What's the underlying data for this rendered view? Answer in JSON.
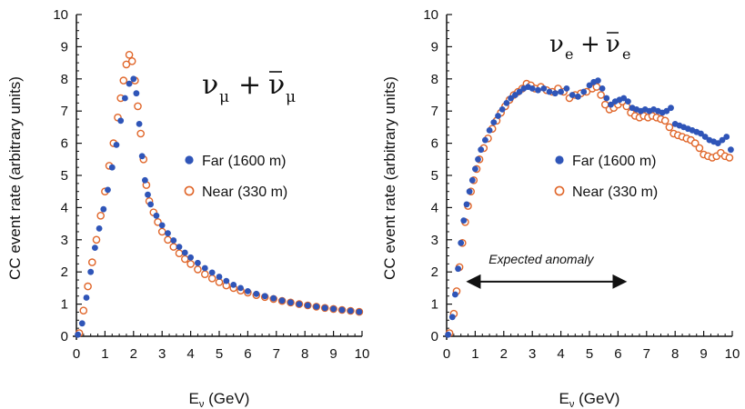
{
  "colors": {
    "far": "#2f55b8",
    "near": "#e0662a",
    "axis": "#111111"
  },
  "chart_data": [
    {
      "type": "scatter",
      "title": "",
      "formula": {
        "base": "ν",
        "sub": "μ",
        "plus": "+",
        "bar_base": "ν",
        "bar_sub": "μ"
      },
      "xlabel": {
        "base": "E",
        "sub": "ν",
        "unit": " (GeV)"
      },
      "ylabel": "CC event rate  (arbitrary units)",
      "xlim": [
        0,
        10
      ],
      "ylim": [
        0,
        10
      ],
      "xticks": [
        "0",
        "1",
        "2",
        "3",
        "4",
        "5",
        "6",
        "7",
        "8",
        "9",
        "10"
      ],
      "yticks": [
        "0",
        "1",
        "2",
        "3",
        "4",
        "5",
        "6",
        "7",
        "8",
        "9",
        "10"
      ],
      "grid": false,
      "legend_position": "right-middle",
      "series": [
        {
          "name": "Far (1600 m)",
          "marker": "filled-circle",
          "points": [
            [
              0.05,
              0.05
            ],
            [
              0.2,
              0.4
            ],
            [
              0.35,
              1.2
            ],
            [
              0.5,
              2.0
            ],
            [
              0.65,
              2.75
            ],
            [
              0.8,
              3.35
            ],
            [
              0.95,
              3.95
            ],
            [
              1.1,
              4.55
            ],
            [
              1.25,
              5.25
            ],
            [
              1.4,
              5.95
            ],
            [
              1.55,
              6.7
            ],
            [
              1.7,
              7.4
            ],
            [
              1.85,
              7.85
            ],
            [
              2.0,
              8.0
            ],
            [
              2.1,
              7.55
            ],
            [
              2.2,
              6.6
            ],
            [
              2.3,
              5.6
            ],
            [
              2.4,
              4.85
            ],
            [
              2.5,
              4.4
            ],
            [
              2.6,
              4.1
            ],
            [
              2.8,
              3.75
            ],
            [
              3.0,
              3.45
            ],
            [
              3.2,
              3.2
            ],
            [
              3.4,
              2.98
            ],
            [
              3.6,
              2.78
            ],
            [
              3.8,
              2.6
            ],
            [
              4.0,
              2.45
            ],
            [
              4.25,
              2.28
            ],
            [
              4.5,
              2.12
            ],
            [
              4.75,
              1.98
            ],
            [
              5.0,
              1.85
            ],
            [
              5.25,
              1.72
            ],
            [
              5.5,
              1.6
            ],
            [
              5.75,
              1.5
            ],
            [
              6.0,
              1.4
            ],
            [
              6.3,
              1.32
            ],
            [
              6.6,
              1.25
            ],
            [
              6.9,
              1.18
            ],
            [
              7.2,
              1.11
            ],
            [
              7.5,
              1.05
            ],
            [
              7.8,
              1.0
            ],
            [
              8.1,
              0.96
            ],
            [
              8.4,
              0.92
            ],
            [
              8.7,
              0.88
            ],
            [
              9.0,
              0.85
            ],
            [
              9.3,
              0.82
            ],
            [
              9.6,
              0.79
            ],
            [
              9.9,
              0.76
            ]
          ]
        },
        {
          "name": "Near (330 m)",
          "marker": "open-circle",
          "points": [
            [
              0.1,
              0.1
            ],
            [
              0.25,
              0.8
            ],
            [
              0.4,
              1.55
            ],
            [
              0.55,
              2.3
            ],
            [
              0.7,
              3.0
            ],
            [
              0.85,
              3.75
            ],
            [
              1.0,
              4.5
            ],
            [
              1.15,
              5.3
            ],
            [
              1.3,
              6.0
            ],
            [
              1.45,
              6.8
            ],
            [
              1.55,
              7.4
            ],
            [
              1.65,
              7.95
            ],
            [
              1.75,
              8.45
            ],
            [
              1.85,
              8.75
            ],
            [
              1.95,
              8.55
            ],
            [
              2.05,
              7.95
            ],
            [
              2.15,
              7.15
            ],
            [
              2.25,
              6.3
            ],
            [
              2.35,
              5.5
            ],
            [
              2.45,
              4.7
            ],
            [
              2.55,
              4.2
            ],
            [
              2.7,
              3.85
            ],
            [
              2.85,
              3.55
            ],
            [
              3.0,
              3.25
            ],
            [
              3.2,
              3.0
            ],
            [
              3.4,
              2.78
            ],
            [
              3.6,
              2.58
            ],
            [
              3.8,
              2.4
            ],
            [
              4.0,
              2.25
            ],
            [
              4.25,
              2.08
            ],
            [
              4.5,
              1.93
            ],
            [
              4.75,
              1.8
            ],
            [
              5.0,
              1.68
            ],
            [
              5.25,
              1.58
            ],
            [
              5.5,
              1.5
            ],
            [
              5.75,
              1.42
            ],
            [
              6.0,
              1.36
            ],
            [
              6.3,
              1.28
            ],
            [
              6.6,
              1.22
            ],
            [
              6.9,
              1.16
            ],
            [
              7.2,
              1.1
            ],
            [
              7.5,
              1.05
            ],
            [
              7.8,
              1.0
            ],
            [
              8.1,
              0.96
            ],
            [
              8.4,
              0.92
            ],
            [
              8.7,
              0.88
            ],
            [
              9.0,
              0.85
            ],
            [
              9.3,
              0.82
            ],
            [
              9.6,
              0.79
            ],
            [
              9.9,
              0.76
            ]
          ]
        }
      ]
    },
    {
      "type": "scatter",
      "title": "",
      "formula": {
        "base": "ν",
        "sub": "e",
        "plus": "+",
        "bar_base": "ν",
        "bar_sub": "e"
      },
      "xlabel": {
        "base": "E",
        "sub": "ν",
        "unit": " (GeV)"
      },
      "ylabel": "CC event rate  (arbitrary units)",
      "xlim": [
        0,
        10
      ],
      "ylim": [
        0,
        10
      ],
      "xticks": [
        "0",
        "1",
        "2",
        "3",
        "4",
        "5",
        "6",
        "7",
        "8",
        "9",
        "10"
      ],
      "yticks": [
        "0",
        "1",
        "2",
        "3",
        "4",
        "5",
        "6",
        "7",
        "8",
        "9",
        "10"
      ],
      "grid": false,
      "legend_position": "right-middle",
      "annotation": {
        "text": "Expected anomaly",
        "x_start": 0.9,
        "x_end": 6.1,
        "y": 1.7
      },
      "series": [
        {
          "name": "Far (1600 m)",
          "marker": "filled-circle",
          "points": [
            [
              0.05,
              0.05
            ],
            [
              0.2,
              0.6
            ],
            [
              0.3,
              1.3
            ],
            [
              0.4,
              2.1
            ],
            [
              0.5,
              2.9
            ],
            [
              0.6,
              3.6
            ],
            [
              0.7,
              4.1
            ],
            [
              0.8,
              4.5
            ],
            [
              0.9,
              4.85
            ],
            [
              1.0,
              5.2
            ],
            [
              1.1,
              5.5
            ],
            [
              1.2,
              5.8
            ],
            [
              1.35,
              6.1
            ],
            [
              1.5,
              6.4
            ],
            [
              1.65,
              6.65
            ],
            [
              1.8,
              6.85
            ],
            [
              1.95,
              7.05
            ],
            [
              2.1,
              7.25
            ],
            [
              2.25,
              7.4
            ],
            [
              2.4,
              7.5
            ],
            [
              2.55,
              7.6
            ],
            [
              2.7,
              7.7
            ],
            [
              2.85,
              7.75
            ],
            [
              3.0,
              7.7
            ],
            [
              3.2,
              7.65
            ],
            [
              3.4,
              7.7
            ],
            [
              3.6,
              7.6
            ],
            [
              3.8,
              7.55
            ],
            [
              4.0,
              7.6
            ],
            [
              4.2,
              7.7
            ],
            [
              4.4,
              7.5
            ],
            [
              4.6,
              7.45
            ],
            [
              4.8,
              7.6
            ],
            [
              5.0,
              7.8
            ],
            [
              5.15,
              7.9
            ],
            [
              5.3,
              7.95
            ],
            [
              5.45,
              7.7
            ],
            [
              5.6,
              7.4
            ],
            [
              5.75,
              7.2
            ],
            [
              5.9,
              7.3
            ],
            [
              6.05,
              7.35
            ],
            [
              6.2,
              7.4
            ],
            [
              6.35,
              7.3
            ],
            [
              6.5,
              7.1
            ],
            [
              6.65,
              7.05
            ],
            [
              6.8,
              7.0
            ],
            [
              6.95,
              7.05
            ],
            [
              7.1,
              7.0
            ],
            [
              7.25,
              7.05
            ],
            [
              7.4,
              7.0
            ],
            [
              7.55,
              6.95
            ],
            [
              7.7,
              7.0
            ],
            [
              7.85,
              7.1
            ],
            [
              8.0,
              6.6
            ],
            [
              8.15,
              6.55
            ],
            [
              8.3,
              6.5
            ],
            [
              8.45,
              6.45
            ],
            [
              8.6,
              6.4
            ],
            [
              8.75,
              6.35
            ],
            [
              8.9,
              6.3
            ],
            [
              9.05,
              6.2
            ],
            [
              9.2,
              6.1
            ],
            [
              9.35,
              6.05
            ],
            [
              9.5,
              6.0
            ],
            [
              9.65,
              6.1
            ],
            [
              9.8,
              6.2
            ],
            [
              9.95,
              5.8
            ]
          ]
        },
        {
          "name": "Near (330 m)",
          "marker": "open-circle",
          "points": [
            [
              0.1,
              0.1
            ],
            [
              0.25,
              0.7
            ],
            [
              0.35,
              1.4
            ],
            [
              0.45,
              2.15
            ],
            [
              0.55,
              2.9
            ],
            [
              0.65,
              3.55
            ],
            [
              0.75,
              4.05
            ],
            [
              0.85,
              4.5
            ],
            [
              0.95,
              4.85
            ],
            [
              1.05,
              5.2
            ],
            [
              1.15,
              5.5
            ],
            [
              1.3,
              5.85
            ],
            [
              1.45,
              6.15
            ],
            [
              1.6,
              6.45
            ],
            [
              1.75,
              6.7
            ],
            [
              1.9,
              6.95
            ],
            [
              2.05,
              7.15
            ],
            [
              2.2,
              7.35
            ],
            [
              2.35,
              7.5
            ],
            [
              2.5,
              7.6
            ],
            [
              2.65,
              7.7
            ],
            [
              2.8,
              7.85
            ],
            [
              2.95,
              7.8
            ],
            [
              3.1,
              7.7
            ],
            [
              3.3,
              7.75
            ],
            [
              3.5,
              7.65
            ],
            [
              3.7,
              7.6
            ],
            [
              3.9,
              7.7
            ],
            [
              4.1,
              7.6
            ],
            [
              4.3,
              7.4
            ],
            [
              4.5,
              7.5
            ],
            [
              4.7,
              7.55
            ],
            [
              4.9,
              7.6
            ],
            [
              5.1,
              7.7
            ],
            [
              5.25,
              7.75
            ],
            [
              5.4,
              7.5
            ],
            [
              5.55,
              7.2
            ],
            [
              5.7,
              7.05
            ],
            [
              5.85,
              7.1
            ],
            [
              6.0,
              7.2
            ],
            [
              6.15,
              7.3
            ],
            [
              6.3,
              7.15
            ],
            [
              6.45,
              6.95
            ],
            [
              6.6,
              6.85
            ],
            [
              6.75,
              6.8
            ],
            [
              6.9,
              6.85
            ],
            [
              7.05,
              6.8
            ],
            [
              7.2,
              6.85
            ],
            [
              7.35,
              6.8
            ],
            [
              7.5,
              6.75
            ],
            [
              7.65,
              6.7
            ],
            [
              7.8,
              6.5
            ],
            [
              7.95,
              6.3
            ],
            [
              8.1,
              6.25
            ],
            [
              8.25,
              6.2
            ],
            [
              8.4,
              6.15
            ],
            [
              8.55,
              6.1
            ],
            [
              8.7,
              6.0
            ],
            [
              8.85,
              5.85
            ],
            [
              9.0,
              5.65
            ],
            [
              9.15,
              5.6
            ],
            [
              9.3,
              5.55
            ],
            [
              9.45,
              5.6
            ],
            [
              9.6,
              5.7
            ],
            [
              9.75,
              5.6
            ],
            [
              9.9,
              5.55
            ]
          ]
        }
      ]
    }
  ]
}
